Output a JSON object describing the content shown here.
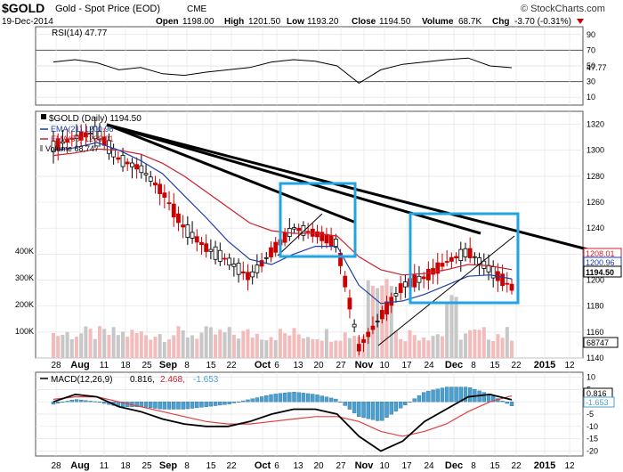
{
  "header": {
    "symbol": "$GOLD",
    "name": "Gold - Spot Price (EOD)",
    "exchange": "CME",
    "watermark": "© StockCharts.com",
    "date": "19-Dec-2014",
    "open_label": "Open",
    "open": "1198.00",
    "high_label": "High",
    "high": "1201.50",
    "low_label": "Low",
    "low": "1193.20",
    "close_label": "Close",
    "close": "1194.50",
    "volume_label": "Volume",
    "volume": "68.7K",
    "chg_label": "Chg",
    "chg": "-3.70 (-0.31%)"
  },
  "rsi": {
    "label": "RSI(14) 47.77",
    "last": "47.77",
    "ticks": [
      "90",
      "70",
      "50",
      "30",
      "10"
    ],
    "upper": 70,
    "lower": 30
  },
  "price": {
    "legend_title": "$GOLD (Daily) 1194.50",
    "ema21_label": "EMA(21) 1200.96",
    "ema55_label": "EMA(55) 1208.01",
    "volume_label": "Volume 68,747",
    "ticks": [
      "1320",
      "1300",
      "1280",
      "1260",
      "1240",
      "1220",
      "1200",
      "1180",
      "1160",
      "1140"
    ],
    "vol_ticks": [
      "400K",
      "300K",
      "200K",
      "100K"
    ],
    "tags": {
      "ema55": "1208.01",
      "ema21": "1200.96",
      "close": "1194.50",
      "volume": "68747"
    }
  },
  "macd": {
    "label_prefix": "MACD(12,26,9)",
    "value1": "0.816,",
    "value2": "2.468,",
    "value3": "-1.653",
    "ticks": [
      "10",
      "5",
      "0",
      "-5",
      "-10",
      "-15",
      "-20"
    ],
    "tags": {
      "macd": "0.816",
      "hist": "-1.653"
    }
  },
  "x_labels": [
    "28",
    "Aug",
    "11",
    "18",
    "25",
    "Sep",
    "8",
    "15",
    "22",
    "Oct",
    "6",
    "13",
    "20",
    "27",
    "Nov",
    "10",
    "17",
    "24",
    "Dec",
    "8",
    "15",
    "22",
    "2015",
    "12"
  ],
  "colors": {
    "up": "#ffffff",
    "down": "#cc0000",
    "ema21": "#1f3ea8",
    "ema55": "#cc2030",
    "vol_up": "#c7c7c7",
    "vol_down": "#f2bcbc",
    "rsi_fill": "#c89090",
    "macd_hist": "#4aa0d0",
    "trend_box": "#22a4e0",
    "neg": "#cc0000",
    "macd_signal": "#e04040"
  },
  "chart_data": {
    "type": "candlestick",
    "x": [
      "Jul 28",
      "Aug 4",
      "Aug 11",
      "Aug 18",
      "Aug 25",
      "Sep 1",
      "Sep 8",
      "Sep 15",
      "Sep 22",
      "Sep 29",
      "Oct 6",
      "Oct 13",
      "Oct 20",
      "Oct 27",
      "Nov 3",
      "Nov 10",
      "Nov 17",
      "Nov 24",
      "Dec 1",
      "Dec 8",
      "Dec 15",
      "Dec 19"
    ],
    "close": [
      1303,
      1310,
      1314,
      1293,
      1286,
      1268,
      1240,
      1225,
      1215,
      1202,
      1222,
      1240,
      1236,
      1228,
      1148,
      1172,
      1196,
      1202,
      1214,
      1222,
      1208,
      1194.5
    ],
    "ema21": [
      1300,
      1302,
      1306,
      1300,
      1292,
      1282,
      1265,
      1248,
      1230,
      1216,
      1212,
      1220,
      1226,
      1226,
      1196,
      1182,
      1184,
      1189,
      1196,
      1203,
      1204,
      1200.96
    ],
    "ema55": [
      1296,
      1298,
      1301,
      1300,
      1297,
      1290,
      1280,
      1268,
      1256,
      1244,
      1238,
      1236,
      1236,
      1234,
      1218,
      1208,
      1204,
      1205,
      1208,
      1212,
      1211,
      1208.01
    ],
    "ylim": [
      1140,
      1330
    ],
    "volume_ylim": [
      0,
      400000
    ],
    "rsi": [
      55,
      58,
      54,
      45,
      48,
      40,
      38,
      42,
      45,
      48,
      55,
      58,
      56,
      50,
      28,
      45,
      52,
      55,
      58,
      60,
      50,
      47.77
    ],
    "macd": [
      0,
      3,
      2,
      -2,
      -4,
      -7,
      -9,
      -10,
      -10,
      -8,
      -5,
      -3,
      -3,
      -5,
      -14,
      -20,
      -16,
      -8,
      -3,
      2,
      3,
      0.816
    ],
    "signal": [
      1,
      2,
      2,
      0,
      -2,
      -4,
      -6,
      -8,
      -9,
      -9,
      -8,
      -7,
      -6,
      -6,
      -8,
      -12,
      -14,
      -12,
      -9,
      -4,
      0,
      2.468
    ],
    "macd_ylim": [
      -22,
      12
    ]
  }
}
